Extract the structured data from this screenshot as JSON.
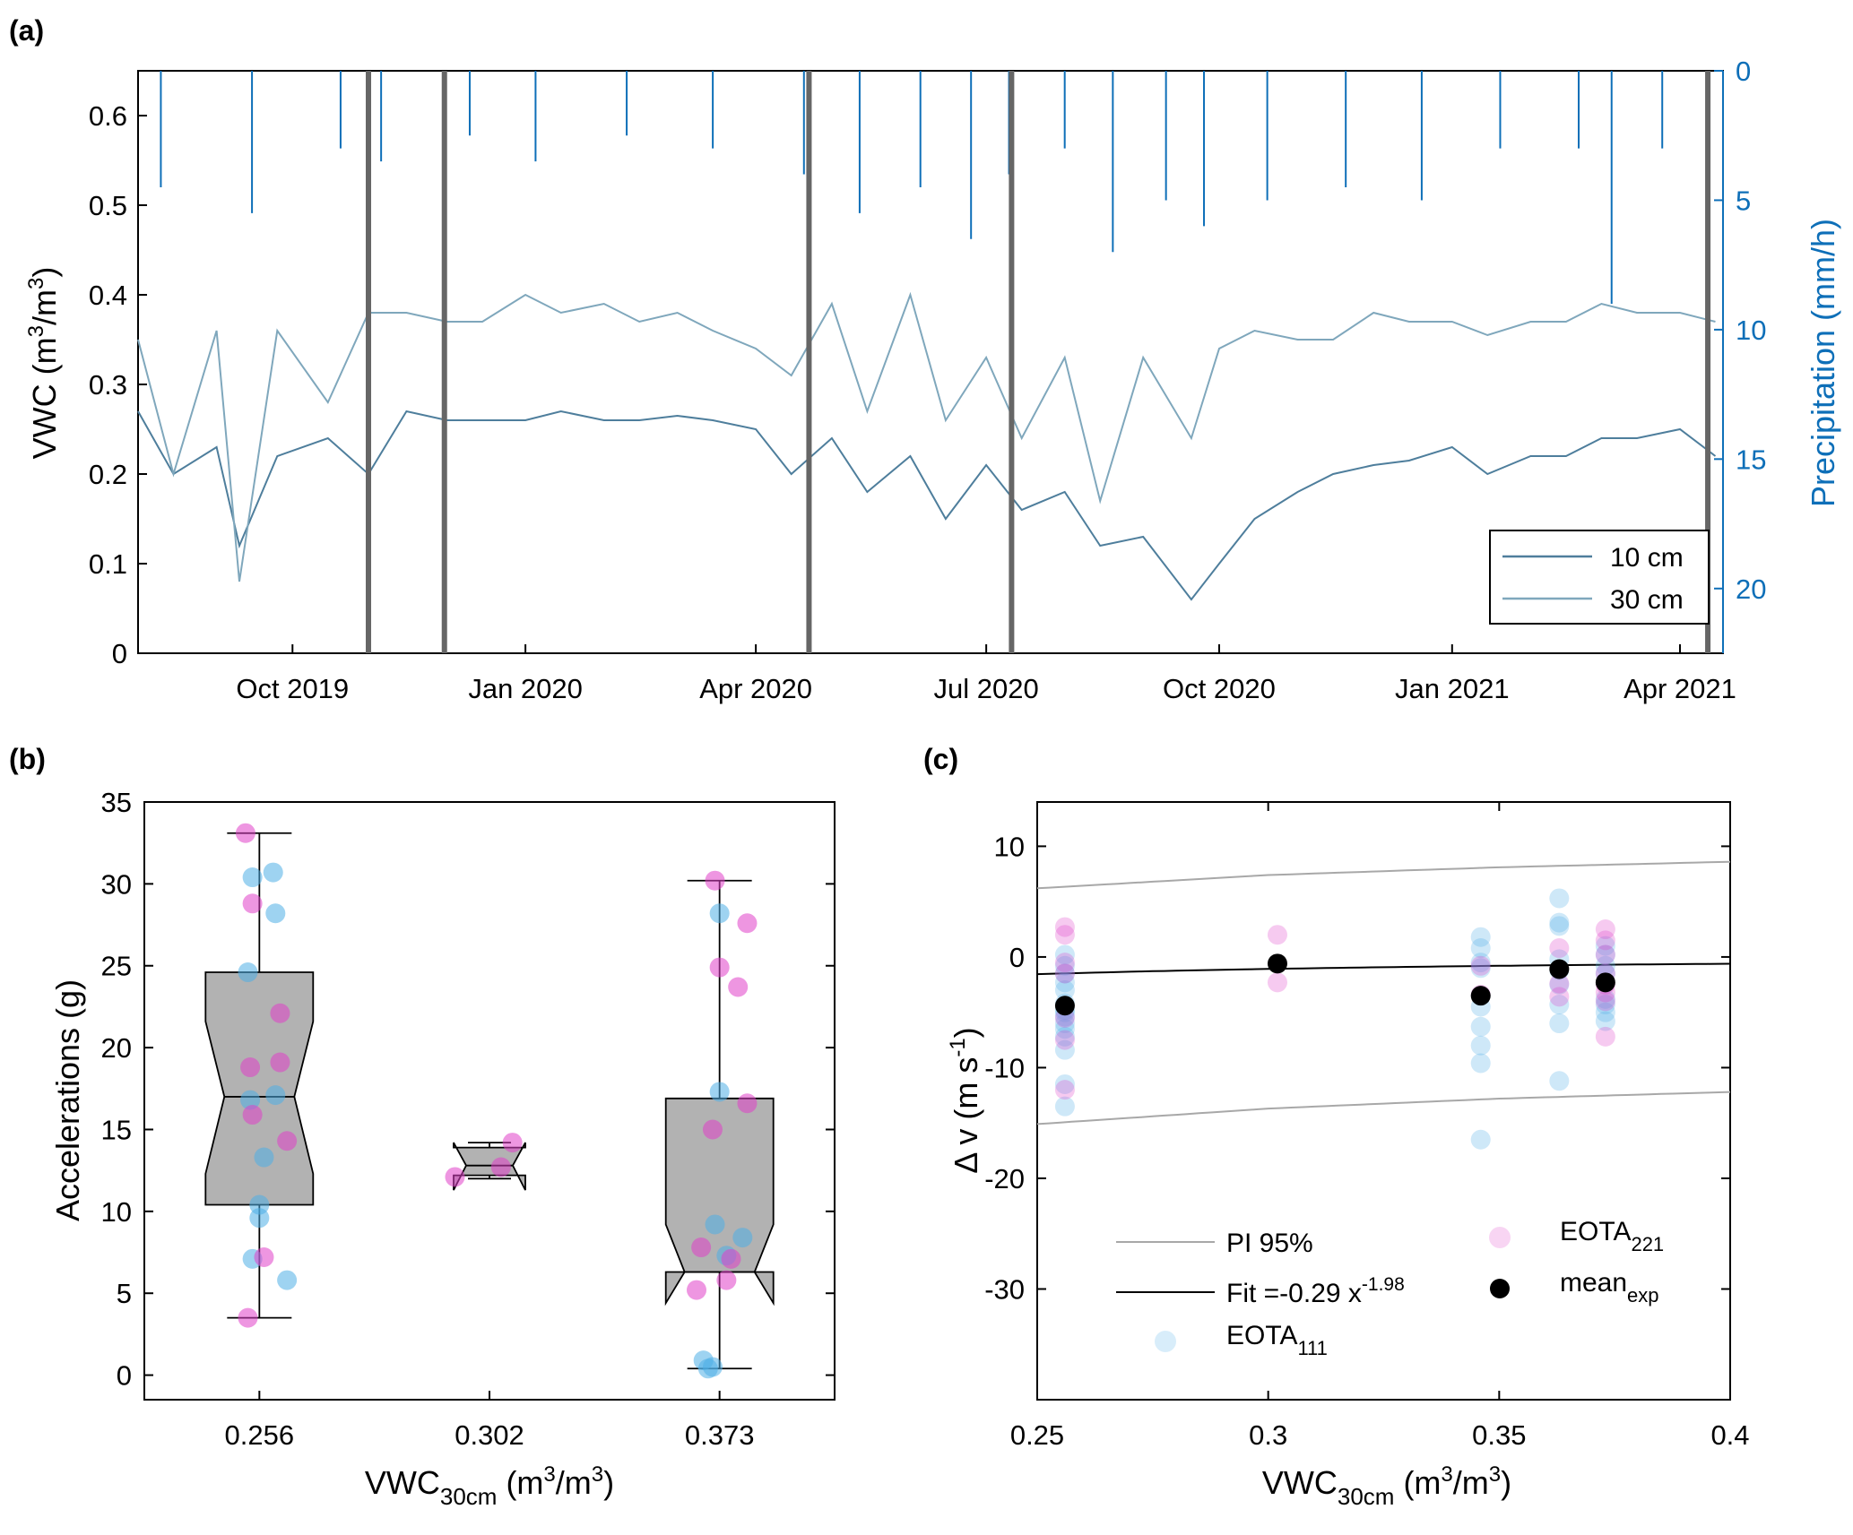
{
  "panels": {
    "a": {
      "label": "(a)",
      "ylabel_left": "VWC (m³/m³)",
      "ylabel_right": "Precipitation (mm/h)",
      "yticks_left": [
        "0",
        "0.1",
        "0.2",
        "0.3",
        "0.4",
        "0.5",
        "0.6"
      ],
      "yticks_right": [
        "0",
        "5",
        "10",
        "15",
        "20"
      ],
      "xticks": [
        "Oct 2019",
        "Jan 2020",
        "Apr 2020",
        "Jul 2020",
        "Oct 2020",
        "Jan 2021",
        "Apr 2021"
      ],
      "legend": [
        "10 cm",
        "30 cm"
      ]
    },
    "b": {
      "label": "(b)",
      "ylabel": "Accelerations (g)",
      "xlabel_main": "VWC",
      "xlabel_sub": "30cm",
      "xlabel_tail": " (m³/m³)",
      "yticks": [
        "0",
        "5",
        "10",
        "15",
        "20",
        "25",
        "30",
        "35"
      ],
      "xticks": [
        "0.256",
        "0.302",
        "0.373"
      ]
    },
    "c": {
      "label": "(c)",
      "ylabel": "Δ v (m s⁻¹)",
      "xlabel_main": "VWC",
      "xlabel_sub": "30cm",
      "xlabel_tail": " (m³/m³)",
      "yticks": [
        "10",
        "0",
        "-10",
        "-20",
        "-30"
      ],
      "xticks": [
        "0.25",
        "0.3",
        "0.35",
        "0.4"
      ],
      "legend": {
        "pi": "PI 95%",
        "fit_main": "Fit =-0.29 x",
        "fit_exp": "-1.98",
        "eota111_main": "EOTA",
        "eota111_sub": "111",
        "eota221_main": "EOTA",
        "eota221_sub": "221",
        "mean_main": "mean",
        "mean_sub": "exp"
      }
    }
  },
  "colors": {
    "vwc_line": "#5B87A3",
    "precip": "#0E6FB8",
    "event": "#666666",
    "box": "#B2B2B2",
    "eota111": "#4FAEE6",
    "eota221": "#E040C8",
    "mean": "#000000",
    "pi": "#A8A8A8",
    "fit": "#000000"
  },
  "chart_data": [
    {
      "type": "line",
      "title": "",
      "xlabel": "",
      "ylabel": "VWC (m³/m³)",
      "y2label": "Precipitation (mm/h)",
      "ylim": [
        0,
        0.65
      ],
      "y2lim": [
        0,
        22.5
      ],
      "y2_reversed": true,
      "xlim": [
        "2019-08-01",
        "2021-04-18"
      ],
      "series": [
        {
          "name": "10 cm",
          "x": [
            "2019-08-01",
            "2019-08-15",
            "2019-09-01",
            "2019-09-10",
            "2019-09-25",
            "2019-10-15",
            "2019-10-31",
            "2019-11-15",
            "2019-12-01",
            "2019-12-15",
            "2020-01-01",
            "2020-01-15",
            "2020-02-01",
            "2020-02-15",
            "2020-03-01",
            "2020-03-15",
            "2020-04-01",
            "2020-04-15",
            "2020-05-01",
            "2020-05-15",
            "2020-06-01",
            "2020-06-15",
            "2020-07-01",
            "2020-07-15",
            "2020-08-01",
            "2020-08-15",
            "2020-09-01",
            "2020-09-20",
            "2020-10-01",
            "2020-10-15",
            "2020-11-01",
            "2020-11-15",
            "2020-12-01",
            "2020-12-15",
            "2021-01-01",
            "2021-01-15",
            "2021-02-01",
            "2021-02-15",
            "2021-03-01",
            "2021-03-15",
            "2021-04-01",
            "2021-04-15"
          ],
          "y": [
            0.27,
            0.2,
            0.23,
            0.12,
            0.22,
            0.24,
            0.2,
            0.27,
            0.26,
            0.26,
            0.26,
            0.27,
            0.26,
            0.26,
            0.265,
            0.26,
            0.25,
            0.2,
            0.24,
            0.18,
            0.22,
            0.15,
            0.21,
            0.16,
            0.18,
            0.12,
            0.13,
            0.06,
            0.1,
            0.15,
            0.18,
            0.2,
            0.21,
            0.215,
            0.23,
            0.2,
            0.22,
            0.22,
            0.24,
            0.24,
            0.25,
            0.22
          ]
        },
        {
          "name": "30 cm",
          "x": [
            "2019-08-01",
            "2019-08-15",
            "2019-09-01",
            "2019-09-10",
            "2019-09-25",
            "2019-10-15",
            "2019-10-31",
            "2019-11-15",
            "2019-12-01",
            "2019-12-15",
            "2020-01-01",
            "2020-01-15",
            "2020-02-01",
            "2020-02-15",
            "2020-03-01",
            "2020-03-15",
            "2020-04-01",
            "2020-04-15",
            "2020-05-01",
            "2020-05-15",
            "2020-06-01",
            "2020-06-15",
            "2020-07-01",
            "2020-07-15",
            "2020-08-01",
            "2020-08-15",
            "2020-09-01",
            "2020-09-20",
            "2020-10-01",
            "2020-10-15",
            "2020-11-01",
            "2020-11-15",
            "2020-12-01",
            "2020-12-15",
            "2021-01-01",
            "2021-01-15",
            "2021-02-01",
            "2021-02-15",
            "2021-03-01",
            "2021-03-15",
            "2021-04-01",
            "2021-04-15"
          ],
          "y": [
            0.35,
            0.2,
            0.36,
            0.08,
            0.36,
            0.28,
            0.38,
            0.38,
            0.37,
            0.37,
            0.4,
            0.38,
            0.39,
            0.37,
            0.38,
            0.36,
            0.34,
            0.31,
            0.39,
            0.27,
            0.4,
            0.26,
            0.33,
            0.24,
            0.33,
            0.17,
            0.33,
            0.24,
            0.34,
            0.36,
            0.35,
            0.35,
            0.38,
            0.37,
            0.37,
            0.355,
            0.37,
            0.37,
            0.39,
            0.38,
            0.38,
            0.37
          ]
        },
        {
          "name": "Precipitation",
          "x": [
            "2019-08-10",
            "2019-09-15",
            "2019-10-20",
            "2019-11-05",
            "2019-12-10",
            "2020-01-05",
            "2020-02-10",
            "2020-03-15",
            "2020-04-20",
            "2020-05-12",
            "2020-06-05",
            "2020-06-25",
            "2020-07-10",
            "2020-08-01",
            "2020-08-20",
            "2020-09-10",
            "2020-09-25",
            "2020-10-20",
            "2020-11-20",
            "2020-12-20",
            "2021-01-20",
            "2021-02-20",
            "2021-03-05",
            "2021-03-25"
          ],
          "y": [
            4.5,
            5.5,
            3,
            3.5,
            2.5,
            3.5,
            2.5,
            3,
            4,
            5.5,
            4.5,
            6.5,
            4,
            3,
            7,
            5,
            6,
            5,
            4.5,
            5,
            3,
            3,
            9,
            3
          ]
        }
      ],
      "event_dates": [
        "2019-10-31",
        "2019-11-30",
        "2020-04-22",
        "2020-07-11",
        "2021-04-12"
      ]
    },
    {
      "type": "box",
      "title": "",
      "xlabel": "VWC30cm (m³/m³)",
      "ylabel": "Accelerations (g)",
      "ylim": [
        -1.5,
        35
      ],
      "categories": [
        "0.256",
        "0.302",
        "0.373"
      ],
      "boxes": [
        {
          "min": 3.5,
          "q1": 10.4,
          "median": 17.0,
          "q3": 24.6,
          "max": 33.1,
          "notch_lo": 12.3,
          "notch_hi": 21.6
        },
        {
          "min": 12.0,
          "q1": 12.2,
          "median": 12.8,
          "q3": 13.9,
          "max": 14.2,
          "notch_lo": 11.3,
          "notch_hi": 14.2
        },
        {
          "min": 0.4,
          "q1": 6.3,
          "median": 6.3,
          "q3": 16.9,
          "max": 30.2,
          "notch_lo": 4.4,
          "notch_hi": 9.2
        }
      ],
      "series": [
        {
          "name": "EOTA111",
          "points": [
            [
              0.97,
              30.4
            ],
            [
              1.06,
              30.7
            ],
            [
              1.07,
              28.2
            ],
            [
              0.95,
              24.6
            ],
            [
              1.07,
              17.1
            ],
            [
              0.96,
              16.8
            ],
            [
              1.02,
              13.3
            ],
            [
              1.0,
              10.4
            ],
            [
              1.0,
              9.6
            ],
            [
              0.97,
              7.1
            ],
            [
              1.12,
              5.8
            ],
            [
              3.0,
              28.2
            ],
            [
              3.0,
              17.3
            ],
            [
              2.98,
              9.2
            ],
            [
              3.1,
              8.4
            ],
            [
              3.03,
              7.3
            ],
            [
              2.93,
              0.9
            ],
            [
              2.95,
              0.4
            ],
            [
              2.97,
              0.5
            ]
          ]
        },
        {
          "name": "EOTA221",
          "points": [
            [
              0.94,
              33.1
            ],
            [
              0.97,
              28.8
            ],
            [
              1.09,
              22.1
            ],
            [
              1.09,
              19.1
            ],
            [
              0.96,
              18.8
            ],
            [
              0.97,
              15.9
            ],
            [
              1.12,
              14.3
            ],
            [
              1.02,
              7.2
            ],
            [
              0.95,
              3.5
            ],
            [
              2.98,
              30.2
            ],
            [
              3.0,
              24.9
            ],
            [
              3.08,
              23.7
            ],
            [
              3.12,
              27.6
            ],
            [
              3.12,
              16.6
            ],
            [
              2.97,
              15.0
            ],
            [
              2.92,
              7.8
            ],
            [
              3.05,
              7.1
            ],
            [
              3.03,
              5.8
            ],
            [
              2.9,
              5.2
            ],
            [
              2.1,
              14.2
            ],
            [
              1.85,
              12.1
            ],
            [
              2.05,
              12.7
            ]
          ]
        }
      ]
    },
    {
      "type": "scatter",
      "title": "",
      "xlabel": "VWC30cm (m³/m³)",
      "ylabel": "Δ v (m s⁻¹)",
      "xlim": [
        0.25,
        0.4
      ],
      "ylim": [
        -40,
        14
      ],
      "fit": {
        "label": "Fit =-0.29 x^-1.98",
        "a": -0.29,
        "b": -1.98
      },
      "pi95": {
        "upper": [
          [
            0.25,
            6.2
          ],
          [
            0.3,
            7.4
          ],
          [
            0.35,
            8.1
          ],
          [
            0.4,
            8.6
          ]
        ],
        "lower": [
          [
            0.25,
            -15.1
          ],
          [
            0.3,
            -13.7
          ],
          [
            0.35,
            -12.8
          ],
          [
            0.4,
            -12.2
          ]
        ]
      },
      "series": [
        {
          "name": "EOTA111",
          "x": [
            0.256,
            0.256,
            0.256,
            0.256,
            0.256,
            0.256,
            0.256,
            0.256,
            0.256,
            0.256,
            0.256,
            0.256,
            0.256,
            0.256,
            0.256,
            0.346,
            0.346,
            0.346,
            0.346,
            0.346,
            0.346,
            0.346,
            0.346,
            0.346,
            0.346,
            0.363,
            0.363,
            0.363,
            0.363,
            0.363,
            0.363,
            0.363,
            0.363,
            0.363,
            0.373,
            0.373,
            0.373,
            0.373,
            0.373,
            0.373,
            0.373,
            0.373
          ],
          "y": [
            0.2,
            -0.8,
            -1.5,
            -2.3,
            -3.0,
            -4.2,
            -5.0,
            -5.4,
            -6.0,
            -6.5,
            -7.2,
            -8.4,
            -11.5,
            -13.5,
            -4.8,
            1.8,
            0.8,
            -0.5,
            -1.0,
            -3.5,
            -4.5,
            -6.3,
            -8.0,
            -9.6,
            -16.5,
            5.3,
            3.1,
            2.8,
            -0.2,
            -1.2,
            -2.5,
            -6.0,
            -11.2,
            -4.3,
            1.0,
            0.2,
            -0.8,
            -1.5,
            -3.8,
            -4.3,
            -5.0,
            -5.8
          ]
        },
        {
          "name": "EOTA221",
          "x": [
            0.256,
            0.256,
            0.256,
            0.256,
            0.256,
            0.256,
            0.256,
            0.302,
            0.302,
            0.346,
            0.346,
            0.363,
            0.363,
            0.363,
            0.373,
            0.373,
            0.373,
            0.373,
            0.373,
            0.373,
            0.373,
            0.373
          ],
          "y": [
            2.7,
            2.0,
            -0.5,
            -1.5,
            -7.5,
            -12.0,
            -5.5,
            2.0,
            -2.3,
            -0.8,
            -3.4,
            0.8,
            -2.4,
            -3.6,
            2.5,
            1.5,
            0.2,
            -1.5,
            -2.5,
            -3.2,
            -4.0,
            -7.2
          ]
        },
        {
          "name": "meanexp",
          "x": [
            0.256,
            0.302,
            0.346,
            0.363,
            0.373
          ],
          "y": [
            -4.4,
            -0.6,
            -3.5,
            -1.1,
            -2.3
          ]
        }
      ]
    }
  ]
}
